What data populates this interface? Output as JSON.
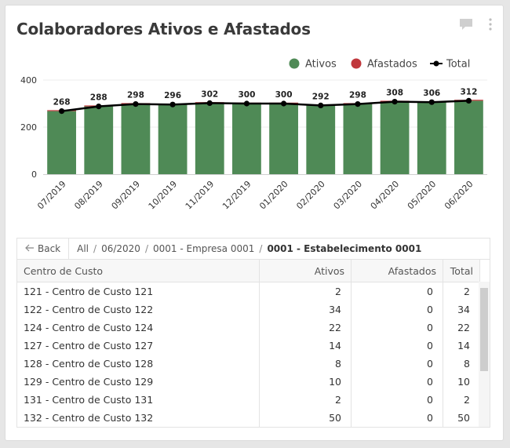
{
  "header": {
    "title": "Colaboradores Ativos e Afastados"
  },
  "legend": [
    "Ativos",
    "Afastados",
    "Total"
  ],
  "colors": {
    "ativos": "#4f8a56",
    "afastados": "#c0373c",
    "total": "#000000"
  },
  "chart_data": {
    "type": "bar",
    "title": "Colaboradores Ativos e Afastados",
    "categories": [
      "07/2019",
      "08/2019",
      "09/2019",
      "10/2019",
      "11/2019",
      "12/2019",
      "01/2020",
      "02/2020",
      "03/2020",
      "04/2020",
      "05/2020",
      "06/2020"
    ],
    "series": [
      {
        "name": "Ativos",
        "values": [
          268,
          288,
          298,
          296,
          302,
          300,
          300,
          292,
          298,
          308,
          306,
          312
        ]
      },
      {
        "name": "Afastados",
        "values": [
          0,
          0,
          0,
          0,
          0,
          0,
          0,
          0,
          0,
          0,
          0,
          0
        ]
      },
      {
        "name": "Total",
        "values": [
          268,
          288,
          298,
          296,
          302,
          300,
          300,
          292,
          298,
          308,
          306,
          312
        ]
      }
    ],
    "yticks": [
      "0",
      "200",
      "400"
    ],
    "ylim": [
      0,
      400
    ],
    "xlabel": "",
    "ylabel": ""
  },
  "nav": {
    "back": "Back",
    "crumbs": [
      "All",
      "06/2020",
      "0001 - Empresa 0001",
      "0001 - Estabelecimento 0001"
    ]
  },
  "table": {
    "headers": [
      "Centro de Custo",
      "Ativos",
      "Afastados",
      "Total"
    ],
    "rows": [
      [
        "121 - Centro de Custo 121",
        "2",
        "0",
        "2"
      ],
      [
        "122 - Centro de Custo 122",
        "34",
        "0",
        "34"
      ],
      [
        "124 - Centro de Custo 124",
        "22",
        "0",
        "22"
      ],
      [
        "127 - Centro de Custo 127",
        "14",
        "0",
        "14"
      ],
      [
        "128 - Centro de Custo 128",
        "8",
        "0",
        "8"
      ],
      [
        "129 - Centro de Custo 129",
        "10",
        "0",
        "10"
      ],
      [
        "131 - Centro de Custo 131",
        "2",
        "0",
        "2"
      ],
      [
        "132 - Centro de Custo 132",
        "50",
        "0",
        "50"
      ]
    ]
  }
}
